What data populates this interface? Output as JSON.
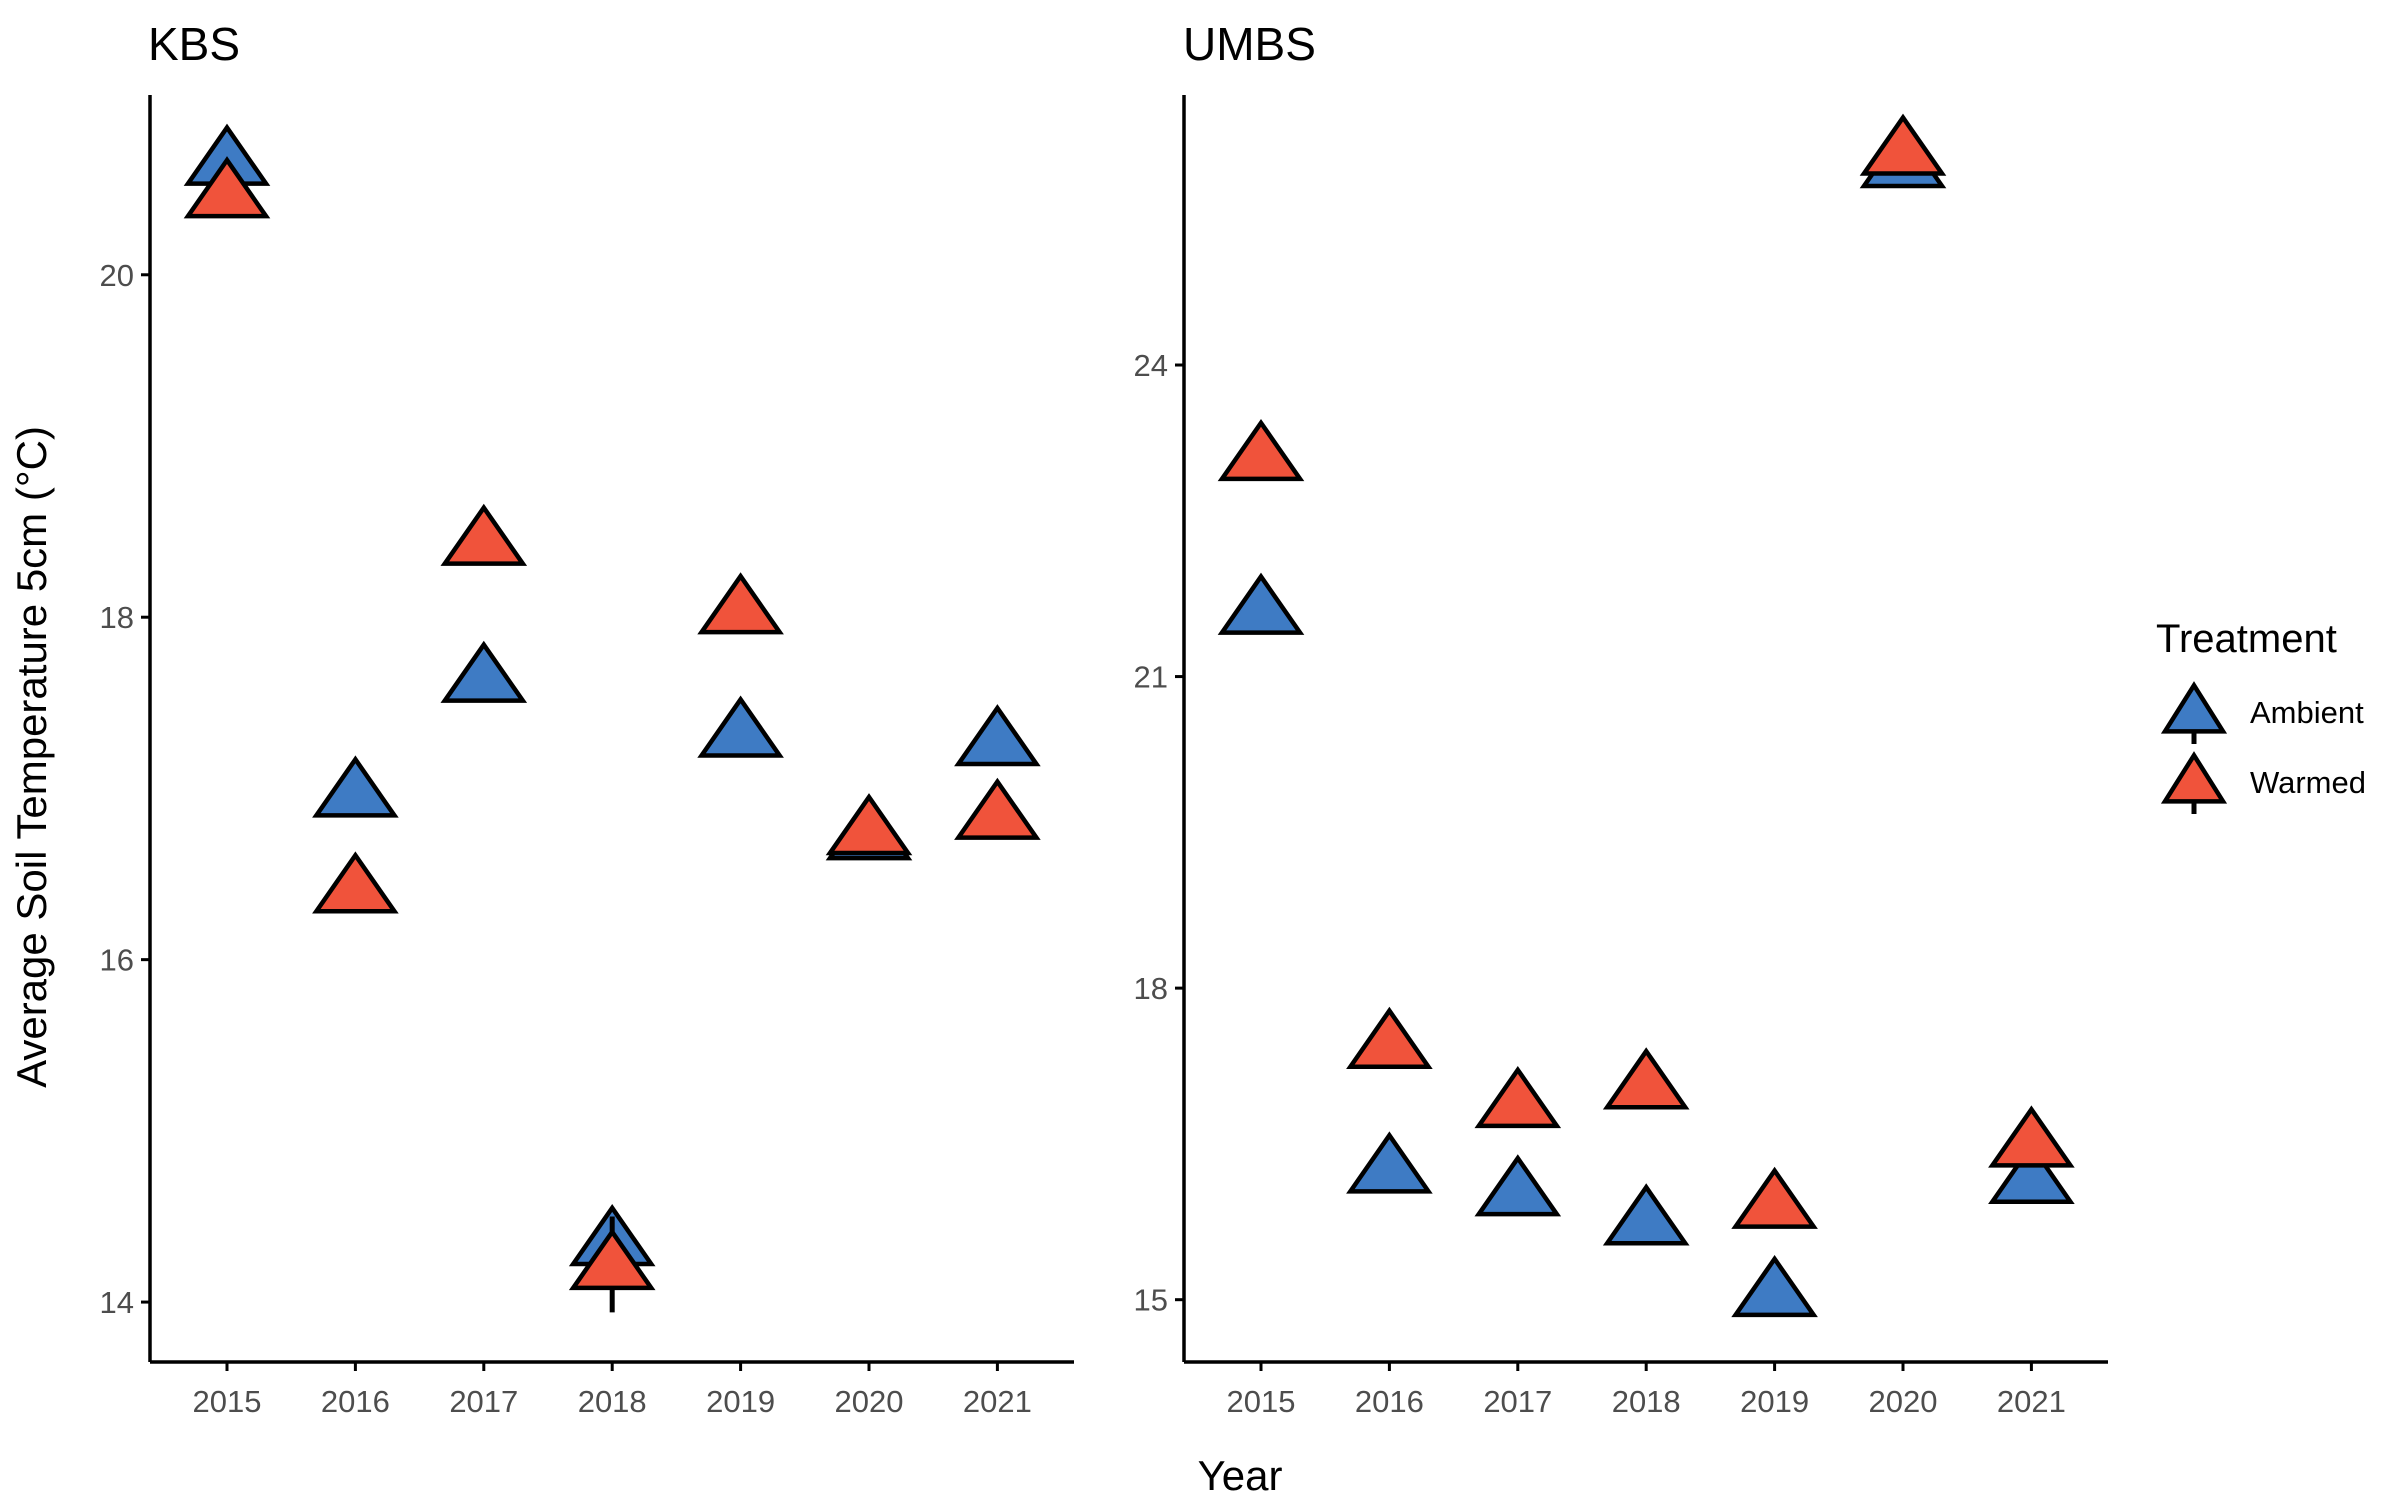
{
  "figure": {
    "y_axis_title": "Average Soil Temperature 5cm (°C)",
    "x_axis_title": "Year"
  },
  "legend": {
    "title": "Treatment",
    "placement": "right",
    "items": [
      {
        "label": "Ambient",
        "color": "#3e7bc4"
      },
      {
        "label": "Warmed",
        "color": "#f0533b"
      }
    ]
  },
  "colors": {
    "ambient": "#3e7bc4",
    "warmed": "#f0533b",
    "outline": "#000000",
    "axis": "#000000",
    "tick_text": "#4d4d4d"
  },
  "chart_data": [
    {
      "type": "scatter",
      "title": "KBS",
      "xlabel": "Year",
      "ylabel": "Average Soil Temperature 5cm (°C)",
      "categories": [
        "2015",
        "2016",
        "2017",
        "2018",
        "2019",
        "2020",
        "2021"
      ],
      "ylim": [
        13.65,
        21.05
      ],
      "yticks": [
        14,
        16,
        18,
        20
      ],
      "grid": false,
      "marker": "triangle",
      "series": [
        {
          "name": "Ambient",
          "color": "#3e7bc4",
          "values": [
            20.67,
            16.98,
            17.65,
            14.36,
            17.33,
            16.73,
            17.28
          ],
          "error": [
            0,
            0,
            0,
            0,
            0,
            0,
            0
          ]
        },
        {
          "name": "Warmed",
          "color": "#f0533b",
          "values": [
            20.48,
            16.42,
            18.45,
            14.22,
            18.05,
            16.76,
            16.85
          ],
          "error": [
            0,
            0,
            0,
            0.28,
            0,
            0,
            0
          ]
        }
      ]
    },
    {
      "type": "scatter",
      "title": "UMBS",
      "xlabel": "Year",
      "ylabel": "",
      "categories": [
        "2015",
        "2016",
        "2017",
        "2018",
        "2019",
        "2020",
        "2021"
      ],
      "ylim": [
        14.4,
        26.6
      ],
      "yticks": [
        15,
        18,
        21,
        24
      ],
      "grid": false,
      "marker": "triangle",
      "series": [
        {
          "name": "Ambient",
          "color": "#3e7bc4",
          "values": [
            21.65,
            16.27,
            16.05,
            15.77,
            15.08,
            25.95,
            16.17
          ],
          "error": [
            0,
            0,
            0,
            0,
            0,
            0,
            0
          ]
        },
        {
          "name": "Warmed",
          "color": "#f0533b",
          "values": [
            23.13,
            17.47,
            16.9,
            17.08,
            15.93,
            26.07,
            16.52
          ],
          "error": [
            0,
            0,
            0,
            0,
            0,
            0,
            0
          ]
        }
      ]
    }
  ]
}
